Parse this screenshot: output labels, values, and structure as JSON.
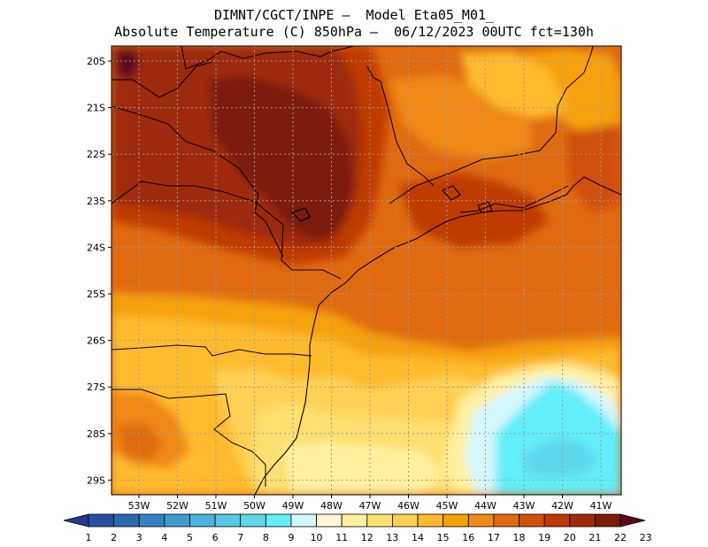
{
  "header": {
    "title_line1": "DIMNT/CGCT/INPE –  Model Eta05_M01_",
    "title_line2": "Absolute Temperature (C) 850hPa –  06/12/2023 00UTC fct=130h"
  },
  "map": {
    "lat_labels": [
      "20S",
      "21S",
      "22S",
      "23S",
      "24S",
      "25S",
      "26S",
      "27S",
      "28S",
      "29S"
    ],
    "lon_labels": [
      "53W",
      "52W",
      "51W",
      "50W",
      "49W",
      "48W",
      "47W",
      "46W",
      "45W",
      "44W",
      "43W",
      "42W",
      "41W"
    ],
    "grid": true
  },
  "colorbar": {
    "labels": [
      "1",
      "2",
      "3",
      "4",
      "5",
      "6",
      "7",
      "8",
      "9",
      "10",
      "11",
      "12",
      "13",
      "14",
      "15",
      "16",
      "17",
      "18",
      "19",
      "20",
      "21",
      "22",
      "23"
    ],
    "colors": [
      "#1f3a8f",
      "#24509e",
      "#2b68b2",
      "#3482c2",
      "#3f9bd0",
      "#4bb3da",
      "#58c7e4",
      "#5fd8ee",
      "#62eefa",
      "#d4f7ff",
      "#fff6d8",
      "#fff0a0",
      "#ffe070",
      "#ffd052",
      "#ffbb2e",
      "#f5a10a",
      "#ef8a18",
      "#e06a10",
      "#d05008",
      "#bf3a05",
      "#9e2a08",
      "#7c1c0a",
      "#5c0a1a"
    ]
  }
}
